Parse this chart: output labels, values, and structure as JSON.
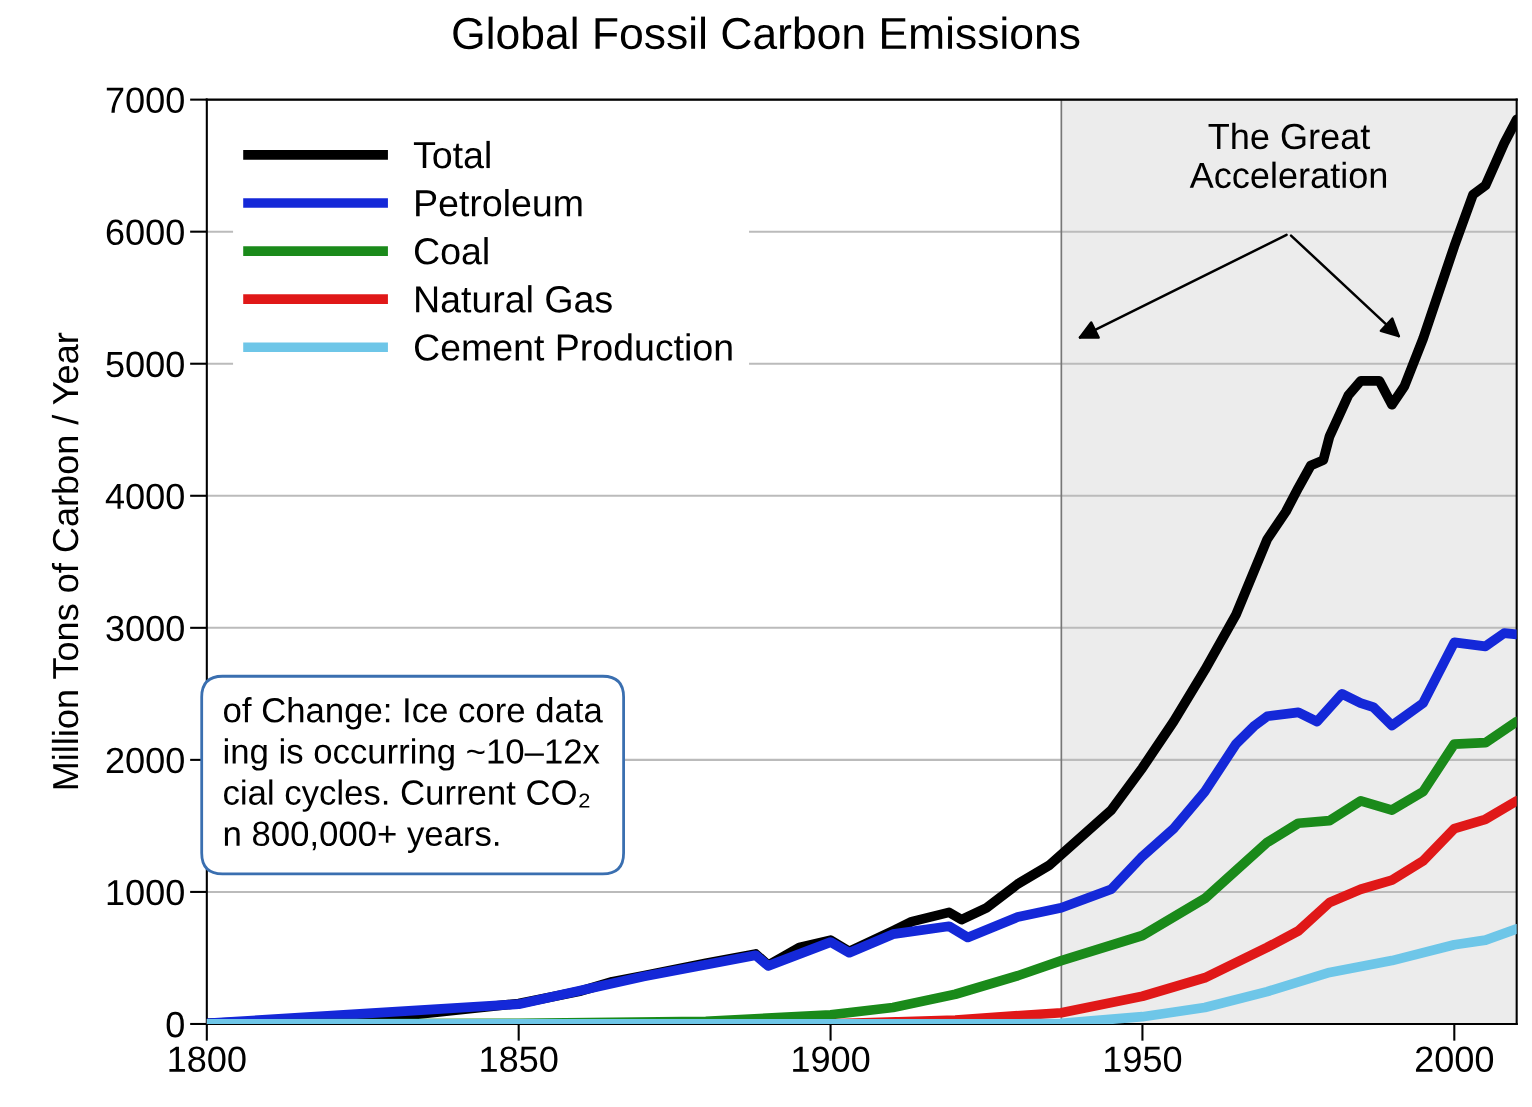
{
  "chart_data": {
    "type": "line",
    "title": "Global Fossil Carbon Emissions",
    "ylabel": "Million Tons of Carbon / Year",
    "xlim": [
      1800,
      2010
    ],
    "xticks": [
      1800,
      1850,
      1900,
      1950,
      2000
    ],
    "ylim": [
      0,
      7000
    ],
    "yticks": [
      0,
      1000,
      2000,
      3000,
      4000,
      5000,
      6000,
      7000
    ],
    "grid": "y",
    "legend": "top left",
    "line_style": "solid",
    "bands": [
      {
        "axis": "x",
        "from": 1937,
        "to": 2010,
        "label": "The Great\nAcceleration",
        "color": "#ececec"
      }
    ],
    "ref_lines": [
      {
        "axis": "x",
        "value": 1937,
        "color": "#777777"
      }
    ],
    "annotations": [
      "of Change: Ice core data\ning is occurring ~10–12x\ncial cycles. Current CO₂\nn 800,000+ years."
    ],
    "series": [
      {
        "name": "Total",
        "color": "#000000",
        "x": [
          1800,
          1830,
          1850,
          1860,
          1865,
          1870,
          1880,
          1888,
          1890,
          1895,
          1900,
          1903,
          1910,
          1913,
          1919,
          1921,
          1925,
          1930,
          1935,
          1940,
          1945,
          1950,
          1955,
          1960,
          1965,
          1970,
          1973,
          1975,
          1977,
          1979,
          1980,
          1983,
          1985,
          1988,
          1990,
          1992,
          1995,
          2000,
          2003,
          2005,
          2008,
          2010
        ],
        "values": [
          5,
          55,
          155,
          250,
          320,
          365,
          460,
          530,
          445,
          580,
          635,
          550,
          705,
          775,
          845,
          790,
          880,
          1060,
          1200,
          1410,
          1620,
          1940,
          2290,
          2680,
          3100,
          3670,
          3880,
          4060,
          4230,
          4270,
          4450,
          4760,
          4870,
          4870,
          4690,
          4830,
          5190,
          5890,
          6280,
          6350,
          6670,
          6850
        ]
      },
      {
        "name": "Petroleum",
        "color": "#1428d8",
        "x": [
          1800,
          1850,
          1870,
          1888,
          1890,
          1900,
          1903,
          1910,
          1919,
          1922,
          1930,
          1937,
          1945,
          1950,
          1955,
          1960,
          1965,
          1968,
          1970,
          1975,
          1978,
          1982,
          1985,
          1987,
          1990,
          1995,
          2000,
          2005,
          2008,
          2010
        ],
        "values": [
          5,
          150,
          360,
          520,
          440,
          620,
          540,
          680,
          740,
          655,
          810,
          880,
          1020,
          1270,
          1480,
          1760,
          2120,
          2260,
          2330,
          2360,
          2290,
          2500,
          2430,
          2400,
          2260,
          2430,
          2890,
          2860,
          2960,
          2950
        ]
      },
      {
        "name": "Coal",
        "color": "#1a8a1a",
        "x": [
          1800,
          1850,
          1880,
          1900,
          1910,
          1920,
          1930,
          1937,
          1950,
          1960,
          1970,
          1975,
          1980,
          1985,
          1990,
          1995,
          2000,
          2005,
          2010
        ],
        "values": [
          0,
          5,
          20,
          70,
          125,
          225,
          365,
          480,
          670,
          950,
          1375,
          1520,
          1540,
          1690,
          1620,
          1760,
          2120,
          2130,
          2290
        ]
      },
      {
        "name": "Natural Gas",
        "color": "#e01818",
        "x": [
          1800,
          1900,
          1920,
          1937,
          1950,
          1960,
          1970,
          1975,
          1980,
          1985,
          1990,
          1995,
          2000,
          2005,
          2010
        ],
        "values": [
          0,
          0,
          30,
          85,
          210,
          350,
          580,
          705,
          920,
          1020,
          1090,
          1235,
          1480,
          1550,
          1690
        ]
      },
      {
        "name": "Cement Production",
        "color": "#6ec6e8",
        "x": [
          1800,
          1930,
          1937,
          1950,
          1960,
          1970,
          1980,
          1990,
          2000,
          2005,
          2010
        ],
        "values": [
          0,
          0,
          5,
          55,
          125,
          245,
          390,
          480,
          600,
          635,
          720
        ]
      }
    ]
  }
}
